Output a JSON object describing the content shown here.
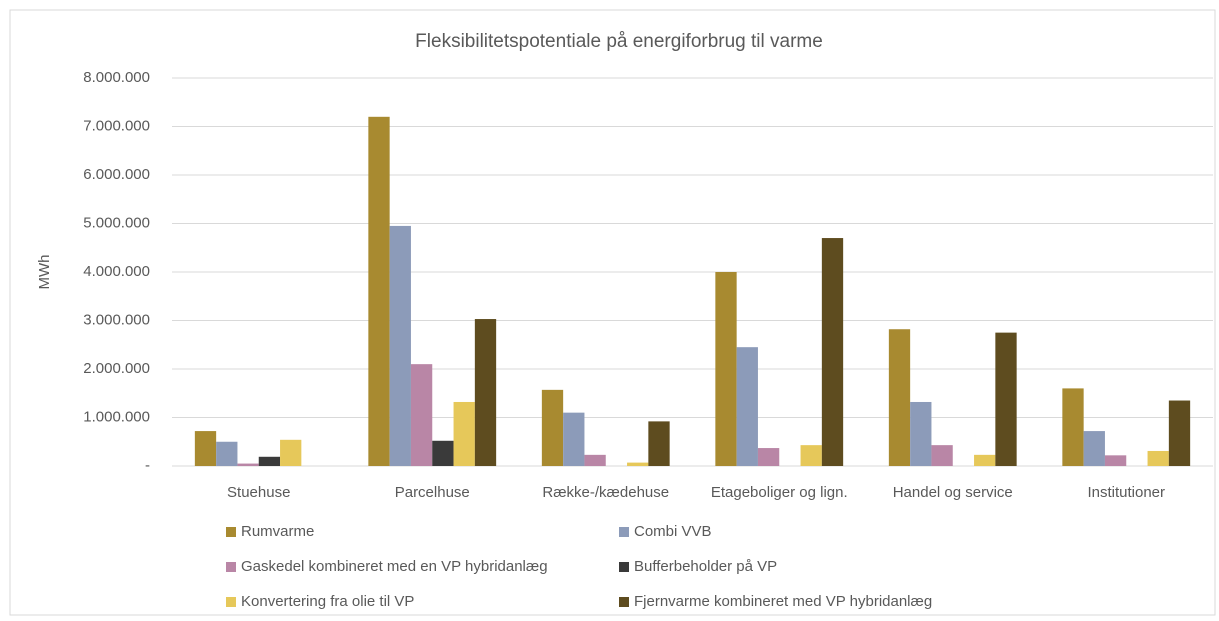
{
  "chart_data": {
    "type": "bar",
    "title": "Fleksibilitetspotentiale på energiforbrug til varme",
    "y_label": "MWh",
    "categories": [
      "Stuehuse",
      "Parcelhuse",
      "Række-/kædehuse",
      "Etageboliger og lign.",
      "Handel og service",
      "Institutioner"
    ],
    "series": [
      {
        "name": "Rumvarme",
        "color": "#a88a30",
        "values": [
          720000,
          7200000,
          1570000,
          4000000,
          2820000,
          1600000
        ]
      },
      {
        "name": "Combi VVB",
        "color": "#8c9bb9",
        "values": [
          500000,
          4950000,
          1100000,
          2450000,
          1320000,
          720000
        ]
      },
      {
        "name": "Gaskedel kombineret med en VP hybridanlæg",
        "color": "#b986a6",
        "values": [
          50000,
          2100000,
          230000,
          370000,
          430000,
          220000
        ]
      },
      {
        "name": "Bufferbeholder på VP",
        "color": "#3a3a3a",
        "values": [
          190000,
          520000,
          0,
          0,
          0,
          0
        ]
      },
      {
        "name": "Konvertering fra olie til VP",
        "color": "#e6c85a",
        "values": [
          540000,
          1320000,
          70000,
          430000,
          230000,
          310000
        ]
      },
      {
        "name": "Fjernvarme kombineret med VP hybridanlæg",
        "color": "#5e4c1f",
        "values": [
          0,
          3030000,
          920000,
          4700000,
          2750000,
          1350000
        ]
      }
    ],
    "ylim": [
      0,
      8000000
    ],
    "yticks": [
      {
        "value": 0,
        "label": "-"
      },
      {
        "value": 1000000,
        "label": "1.000.000"
      },
      {
        "value": 2000000,
        "label": "2.000.000"
      },
      {
        "value": 3000000,
        "label": "3.000.000"
      },
      {
        "value": 4000000,
        "label": "4.000.000"
      },
      {
        "value": 5000000,
        "label": "5.000.000"
      },
      {
        "value": 6000000,
        "label": "6.000.000"
      },
      {
        "value": 7000000,
        "label": "7.000.000"
      },
      {
        "value": 8000000,
        "label": "8.000.000"
      }
    ],
    "grid": true,
    "legend": "bottom"
  }
}
